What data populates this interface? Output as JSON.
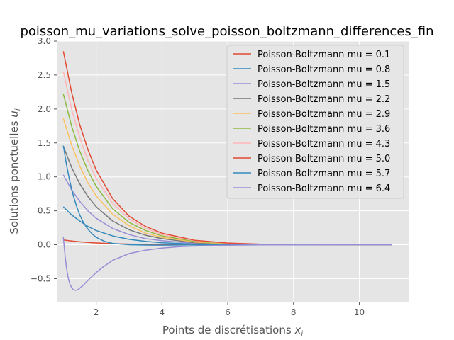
{
  "chart_data": {
    "type": "line",
    "title": "poisson_mu_variations_solve_poisson_boltzmann_differences_fin",
    "xlabel": "Points de discrétisations",
    "xlabel_sub": "x",
    "xlabel_subscript": "i",
    "ylabel": "Solutions ponctuelles",
    "ylabel_sub": "u",
    "ylabel_subscript": "i",
    "xlim": [
      0.8,
      11.5
    ],
    "ylim": [
      -0.85,
      3.0
    ],
    "xticks": [
      2,
      4,
      6,
      8,
      10
    ],
    "yticks": [
      -0.5,
      0.0,
      0.5,
      1.0,
      1.5,
      2.0,
      2.5,
      3.0
    ],
    "xtick_labels": [
      "2",
      "4",
      "6",
      "8",
      "10"
    ],
    "ytick_labels": [
      "−0.5",
      "0.0",
      "0.5",
      "1.0",
      "1.5",
      "2.0",
      "2.5",
      "3.0"
    ],
    "grid": true,
    "legend_position": "top-right",
    "series": [
      {
        "name": "Poisson-Boltzmann mu = 0.1",
        "color": "#E24A33",
        "x": [
          1.0,
          1.25,
          1.5,
          1.75,
          2.0,
          2.5,
          3.0,
          3.5,
          4.0,
          5.0,
          6.0,
          7.0,
          8.0,
          9.0,
          10.0,
          11.0
        ],
        "y": [
          0.07,
          0.055,
          0.043,
          0.034,
          0.026,
          0.016,
          0.01,
          0.006,
          0.004,
          0.001,
          0.0,
          0.0,
          0.0,
          0.0,
          0.0,
          0.0
        ]
      },
      {
        "name": "Poisson-Boltzmann mu = 0.8",
        "color": "#348ABD",
        "x": [
          1.0,
          1.25,
          1.5,
          1.75,
          2.0,
          2.5,
          3.0,
          3.5,
          4.0,
          5.0,
          6.0,
          7.0,
          8.0,
          9.0,
          10.0,
          11.0
        ],
        "y": [
          0.56,
          0.44,
          0.35,
          0.27,
          0.21,
          0.13,
          0.08,
          0.05,
          0.03,
          0.01,
          0.003,
          0.001,
          0.0,
          0.0,
          0.0,
          0.0
        ]
      },
      {
        "name": "Poisson-Boltzmann mu = 1.5",
        "color": "#988ED5",
        "x": [
          1.0,
          1.25,
          1.5,
          1.75,
          2.0,
          2.5,
          3.0,
          3.5,
          4.0,
          5.0,
          6.0,
          7.0,
          8.0,
          9.0,
          10.0,
          11.0
        ],
        "y": [
          1.03,
          0.81,
          0.64,
          0.5,
          0.39,
          0.24,
          0.15,
          0.09,
          0.06,
          0.02,
          0.006,
          0.002,
          0.0,
          0.0,
          0.0,
          0.0
        ]
      },
      {
        "name": "Poisson-Boltzmann mu = 2.2",
        "color": "#777777",
        "x": [
          1.0,
          1.25,
          1.5,
          1.75,
          2.0,
          2.5,
          3.0,
          3.5,
          4.0,
          5.0,
          6.0,
          7.0,
          8.0,
          9.0,
          10.0,
          11.0
        ],
        "y": [
          1.45,
          1.14,
          0.9,
          0.71,
          0.56,
          0.35,
          0.22,
          0.14,
          0.09,
          0.03,
          0.01,
          0.003,
          0.001,
          0.0,
          0.0,
          0.0
        ]
      },
      {
        "name": "Poisson-Boltzmann mu = 2.9",
        "color": "#FBC15E",
        "x": [
          1.0,
          1.25,
          1.5,
          1.75,
          2.0,
          2.5,
          3.0,
          3.5,
          4.0,
          5.0,
          6.0,
          7.0,
          8.0,
          9.0,
          10.0,
          11.0
        ],
        "y": [
          1.86,
          1.47,
          1.16,
          0.91,
          0.72,
          0.45,
          0.28,
          0.17,
          0.11,
          0.04,
          0.015,
          0.005,
          0.002,
          0.0,
          0.0,
          0.0
        ]
      },
      {
        "name": "Poisson-Boltzmann mu = 3.6",
        "color": "#8EBA42",
        "x": [
          1.0,
          1.25,
          1.5,
          1.75,
          2.0,
          2.5,
          3.0,
          3.5,
          4.0,
          5.0,
          6.0,
          7.0,
          8.0,
          9.0,
          10.0,
          11.0
        ],
        "y": [
          2.22,
          1.75,
          1.38,
          1.09,
          0.86,
          0.53,
          0.33,
          0.21,
          0.13,
          0.05,
          0.02,
          0.007,
          0.002,
          0.0,
          0.0,
          0.0
        ]
      },
      {
        "name": "Poisson-Boltzmann mu = 4.3",
        "color": "#FFB5B8",
        "x": [
          1.0,
          1.25,
          1.5,
          1.75,
          2.0,
          2.5,
          3.0,
          3.5,
          4.0,
          5.0,
          6.0,
          7.0,
          8.0,
          9.0,
          10.0,
          11.0
        ],
        "y": [
          2.55,
          2.0,
          1.58,
          1.24,
          0.98,
          0.61,
          0.38,
          0.24,
          0.15,
          0.06,
          0.022,
          0.008,
          0.003,
          0.0,
          0.0,
          0.0
        ]
      },
      {
        "name": "Poisson-Boltzmann mu = 5.0",
        "color": "#E24A33",
        "x": [
          1.0,
          1.25,
          1.5,
          1.75,
          2.0,
          2.5,
          3.0,
          3.5,
          4.0,
          5.0,
          6.0,
          7.0,
          8.0,
          9.0,
          10.0,
          11.0
        ],
        "y": [
          2.85,
          2.25,
          1.77,
          1.4,
          1.1,
          0.68,
          0.42,
          0.27,
          0.17,
          0.065,
          0.025,
          0.009,
          0.003,
          0.001,
          0.0,
          0.0
        ]
      },
      {
        "name": "Poisson-Boltzmann mu = 5.7",
        "color": "#348ABD",
        "x": [
          1.0,
          1.1,
          1.2,
          1.3,
          1.4,
          1.5,
          1.6,
          1.7,
          1.8,
          1.9,
          2.0,
          2.25,
          2.5,
          3.0,
          3.5,
          4.0,
          5.0,
          6.0,
          7.0,
          8.0,
          9.0,
          10.0,
          11.0
        ],
        "y": [
          1.46,
          1.17,
          0.93,
          0.73,
          0.57,
          0.44,
          0.34,
          0.26,
          0.2,
          0.15,
          0.11,
          0.05,
          0.02,
          0.0,
          -0.005,
          -0.006,
          -0.003,
          -0.001,
          0.0,
          0.0,
          0.0,
          0.0,
          0.0
        ]
      },
      {
        "name": "Poisson-Boltzmann mu = 6.4",
        "color": "#988ED5",
        "x": [
          1.0,
          1.05,
          1.1,
          1.15,
          1.2,
          1.25,
          1.3,
          1.35,
          1.4,
          1.45,
          1.5,
          1.6,
          1.7,
          1.8,
          2.0,
          2.2,
          2.5,
          3.0,
          3.5,
          4.0,
          4.5,
          5.0,
          6.0,
          7.0,
          8.0,
          9.0,
          10.0,
          11.0
        ],
        "y": [
          0.11,
          -0.15,
          -0.35,
          -0.49,
          -0.58,
          -0.63,
          -0.66,
          -0.67,
          -0.67,
          -0.66,
          -0.64,
          -0.6,
          -0.55,
          -0.5,
          -0.41,
          -0.33,
          -0.23,
          -0.13,
          -0.08,
          -0.05,
          -0.03,
          -0.02,
          -0.008,
          -0.003,
          -0.001,
          0.0,
          0.0,
          0.0
        ]
      }
    ]
  }
}
